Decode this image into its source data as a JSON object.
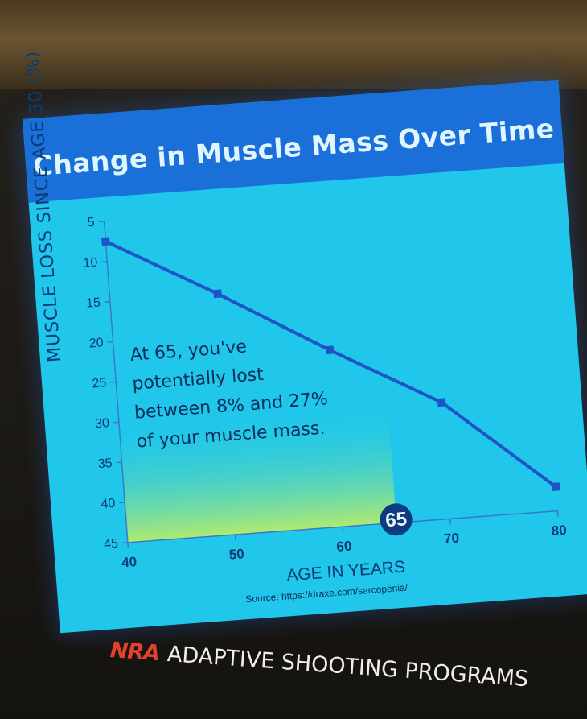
{
  "chart_data": {
    "type": "line",
    "title": "Change in Muscle Mass Over Time",
    "xlabel": "AGE IN YEARS",
    "ylabel": "MUSCLE LOSS SINCE AGE 30 (%)",
    "x": [
      40,
      50,
      60,
      70,
      80
    ],
    "x_ticks": [
      "40",
      "50",
      "60",
      "70",
      "80"
    ],
    "y_ticks": [
      "5",
      "10",
      "15",
      "20",
      "25",
      "30",
      "35",
      "40",
      "45"
    ],
    "xlim": [
      40,
      80
    ],
    "ylim": [
      5,
      45
    ],
    "y_inverted": true,
    "series": [
      {
        "values": [
          7.5,
          15,
          23,
          30.5,
          42
        ]
      }
    ],
    "highlight": {
      "label": "65",
      "x": 65
    },
    "annotation": "At 65, you've potentially lost between 8% and 27% of your muscle mass.",
    "annotation_lines": [
      "At 65, you've",
      "potentially lost",
      "between 8% and 27%",
      "of your muscle mass."
    ],
    "colors": {
      "line": "#1d55c9",
      "background": "#20c7ea",
      "banner": "#1b6fd8",
      "shade": "#c9f05a"
    }
  },
  "source": "Source: https://draxe.com/sarcopenia/",
  "footer": {
    "brand": "NRA",
    "program": "ADAPTIVE SHOOTING PROGRAMS"
  }
}
